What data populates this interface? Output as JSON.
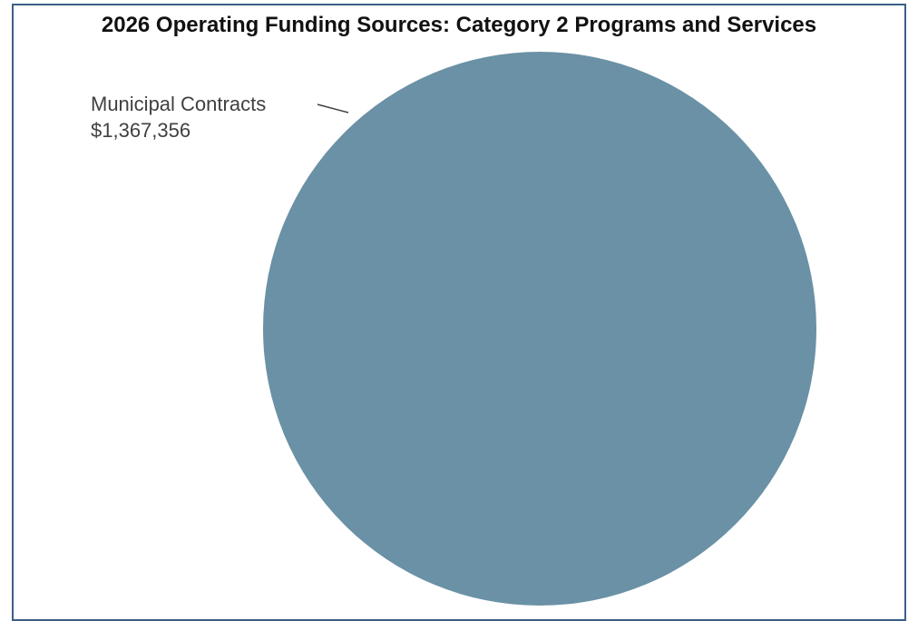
{
  "chart_data": {
    "type": "pie",
    "title": "2026 Operating Funding Sources: Category 2 Programs and Services",
    "slices": [
      {
        "label": "Municipal Contracts",
        "value": 1367356,
        "value_text": "$1,367,356",
        "color": "#6a91a5"
      }
    ],
    "legend": "none"
  }
}
